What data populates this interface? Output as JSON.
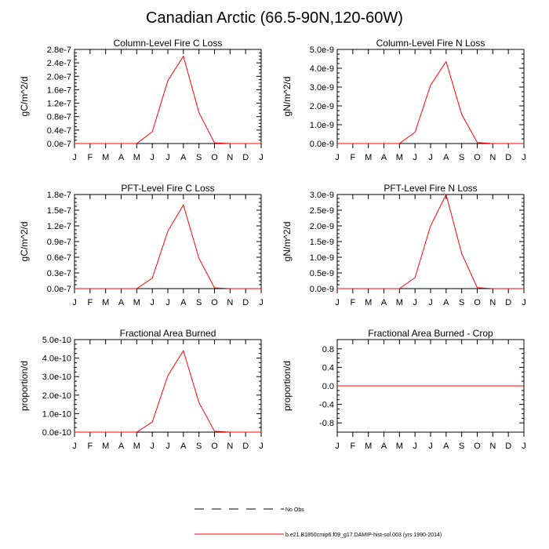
{
  "page": {
    "title": "Canadian Arctic (66.5-90N,120-60W)"
  },
  "legend": {
    "items": [
      {
        "label": "No Obs",
        "color": "#000000",
        "style": "dashed"
      },
      {
        "label": "b.e21.B1850cmip6.f09_g17.DAMIP-hist-sol.003 (yrs 1990-2014)",
        "color": "#ff0000",
        "style": "solid"
      }
    ]
  },
  "chart_data": [
    {
      "type": "line",
      "title": "Column-Level Fire C Loss",
      "ylabel": "gC/m^2/d",
      "x": [
        "J",
        "F",
        "M",
        "A",
        "M",
        "J",
        "J",
        "A",
        "S",
        "O",
        "N",
        "D",
        "J"
      ],
      "ylim": [
        0,
        2.8e-07
      ],
      "yticks": [
        "0.0e-7",
        "0.4e-7",
        "0.8e-7",
        "1.2e-7",
        "1.6e-7",
        "2.0e-7",
        "2.4e-7",
        "2.8e-7"
      ],
      "series": [
        {
          "color": "#ff0000",
          "values": [
            0,
            0,
            0,
            0,
            0,
            3.5e-08,
            1.87e-07,
            2.6e-07,
            9.2e-08,
            2e-09,
            0,
            0,
            0
          ]
        }
      ]
    },
    {
      "type": "line",
      "title": "Column-Level Fire N Loss",
      "ylabel": "gN/m^2/d",
      "x": [
        "J",
        "F",
        "M",
        "A",
        "M",
        "J",
        "J",
        "A",
        "S",
        "O",
        "N",
        "D",
        "J"
      ],
      "ylim": [
        0,
        5e-09
      ],
      "yticks": [
        "0.0e-9",
        "1.0e-9",
        "2.0e-9",
        "3.0e-9",
        "4.0e-9",
        "5.0e-9"
      ],
      "series": [
        {
          "color": "#ff0000",
          "values": [
            0,
            0,
            0,
            0,
            0,
            6e-10,
            3.1e-09,
            4.35e-09,
            1.55e-09,
            5e-11,
            0,
            0,
            0
          ]
        }
      ]
    },
    {
      "type": "line",
      "title": "PFT-Level Fire C Loss",
      "ylabel": "gC/m^2/d",
      "x": [
        "J",
        "F",
        "M",
        "A",
        "M",
        "J",
        "J",
        "A",
        "S",
        "O",
        "N",
        "D",
        "J"
      ],
      "ylim": [
        0,
        1.8e-07
      ],
      "yticks": [
        "0.0e-7",
        "0.3e-7",
        "0.6e-7",
        "0.9e-7",
        "1.2e-7",
        "1.5e-7",
        "1.8e-7"
      ],
      "series": [
        {
          "color": "#ff0000",
          "values": [
            0,
            0,
            0,
            0,
            0,
            2e-08,
            1.1e-07,
            1.6e-07,
            5.8e-08,
            1.5e-09,
            0,
            0,
            0
          ]
        }
      ]
    },
    {
      "type": "line",
      "title": "PFT-Level Fire N Loss",
      "ylabel": "gN/m^2/d",
      "x": [
        "J",
        "F",
        "M",
        "A",
        "M",
        "J",
        "J",
        "A",
        "S",
        "O",
        "N",
        "D",
        "J"
      ],
      "ylim": [
        0,
        3e-09
      ],
      "yticks": [
        "0.0e-9",
        "0.5e-9",
        "1.0e-9",
        "1.5e-9",
        "2.0e-9",
        "2.5e-9",
        "3.0e-9"
      ],
      "series": [
        {
          "color": "#ff0000",
          "values": [
            0,
            0,
            0,
            0,
            0,
            3.5e-10,
            2e-09,
            3e-09,
            1.12e-09,
            3e-11,
            0,
            0,
            0
          ]
        }
      ]
    },
    {
      "type": "line",
      "title": "Fractional Area Burned",
      "ylabel": "proportion/d",
      "x": [
        "J",
        "F",
        "M",
        "A",
        "M",
        "J",
        "J",
        "A",
        "S",
        "O",
        "N",
        "D",
        "J"
      ],
      "ylim": [
        0,
        5e-10
      ],
      "yticks": [
        "0.0e-10",
        "1.0e-10",
        "2.0e-10",
        "3.0e-10",
        "4.0e-10",
        "5.0e-10"
      ],
      "series": [
        {
          "color": "#ff0000",
          "values": [
            0,
            0,
            0,
            0,
            0,
            5.5e-11,
            3.05e-10,
            4.4e-10,
            1.6e-10,
            5e-12,
            0,
            0,
            0
          ]
        }
      ]
    },
    {
      "type": "line",
      "title": "Fractional Area Burned - Crop",
      "ylabel": "proportion/d",
      "x": [
        "J",
        "F",
        "M",
        "A",
        "M",
        "J",
        "J",
        "A",
        "S",
        "O",
        "N",
        "D",
        "J"
      ],
      "ylim": [
        -1.0,
        1.0
      ],
      "yticks": [
        "-0.8",
        "-0.4",
        "0.0",
        "0.4",
        "0.8"
      ],
      "ytickvalues": [
        -0.8,
        -0.4,
        0.0,
        0.4,
        0.8
      ],
      "series": [
        {
          "color": "#ff0000",
          "values": [
            0,
            0,
            0,
            0,
            0,
            0,
            0,
            0,
            0,
            0,
            0,
            0,
            0
          ]
        }
      ]
    }
  ]
}
